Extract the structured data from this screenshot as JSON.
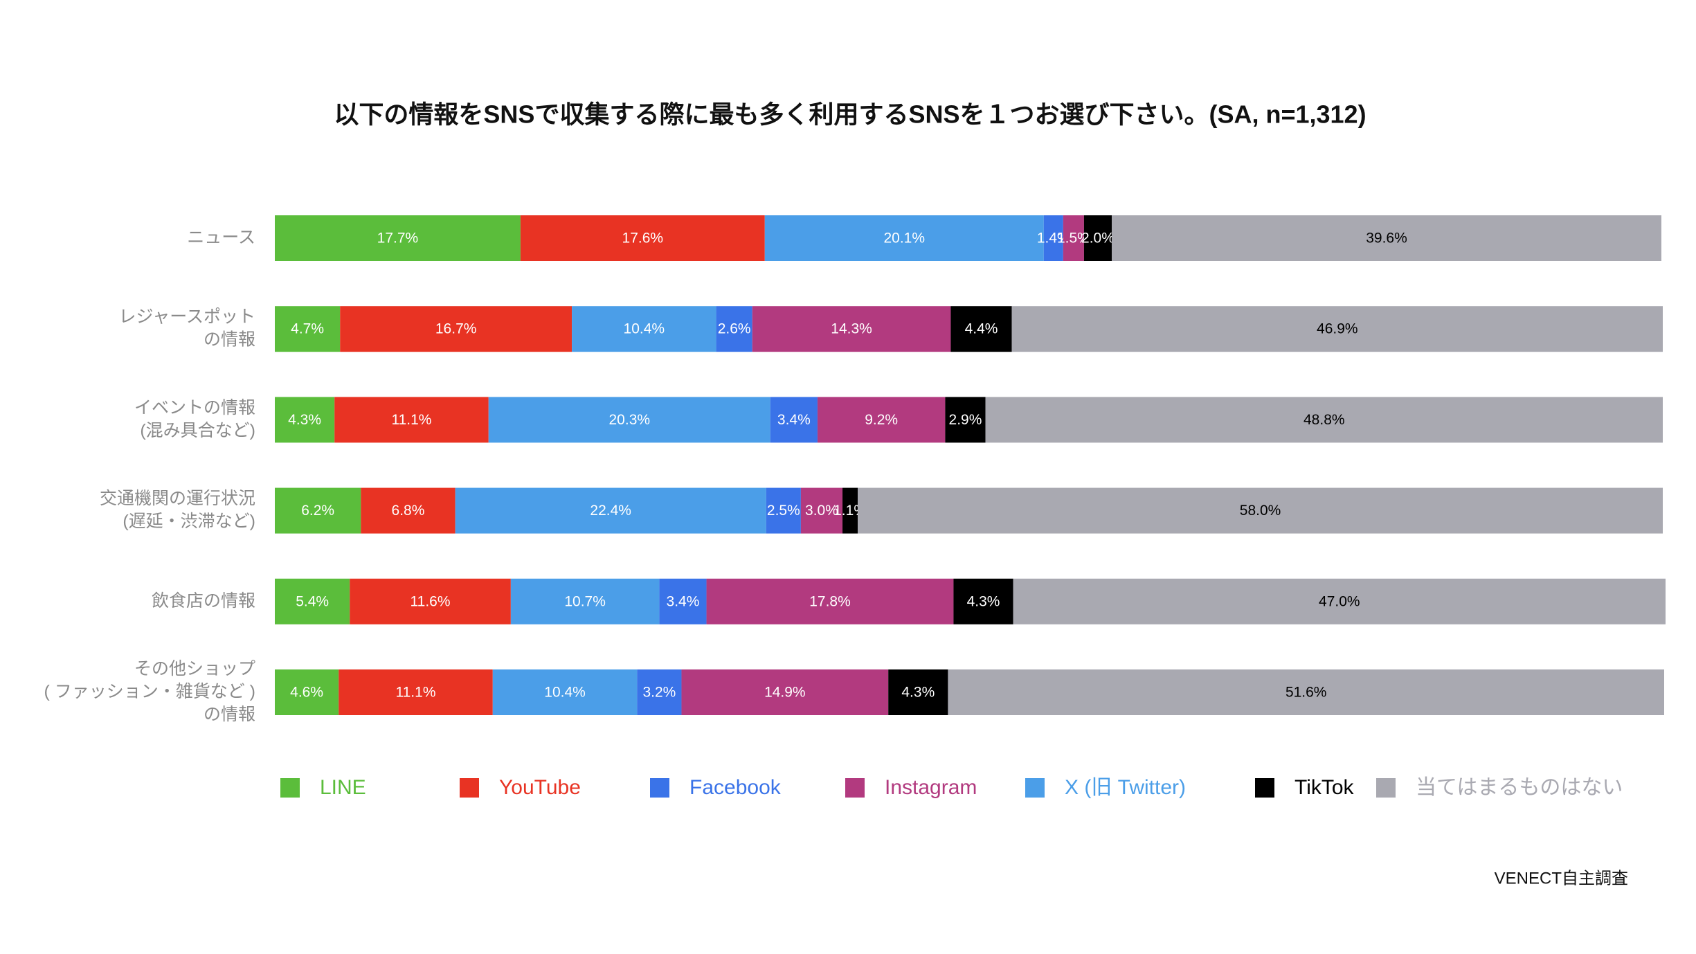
{
  "chart_data": {
    "type": "stacked-bar-horizontal",
    "title": "以下の情報をSNSで収集する際に最も多く利用するSNSを１つお選び下さい。(SA, n=1,312)",
    "categories": [
      "ニュース",
      "レジャースポット\nの情報",
      "イベントの情報\n(混み具合など)",
      "交通機関の運行状況\n(遅延・渋滞など)",
      "飲食店の情報",
      "その他ショップ\n( ファッション・雑貨など )\nの情報"
    ],
    "xlim": [
      0,
      100
    ],
    "series": [
      {
        "name": "LINE",
        "color": "#5bbd3b",
        "label_color": "#ffffff",
        "values": [
          17.7,
          4.7,
          4.3,
          6.2,
          5.4,
          4.6
        ],
        "value_labels": [
          "17.7%",
          "4.7%",
          "4.3%",
          "6.2%",
          "5.4%",
          "4.6%"
        ]
      },
      {
        "name": "YouTube",
        "color": "#e83323",
        "label_color": "#ffffff",
        "values": [
          17.6,
          16.7,
          11.1,
          6.8,
          11.6,
          11.1
        ],
        "value_labels": [
          "17.6%",
          "16.7%",
          "11.1%",
          "6.8%",
          "11.6%",
          "11.1%"
        ]
      },
      {
        "name": "Facebook",
        "color": "#3a73e8",
        "label_color": "#ffffff",
        "values": [
          1.4,
          2.6,
          3.4,
          2.5,
          3.4,
          3.2
        ],
        "value_labels": [
          "1.4%",
          "2.6%",
          "3.4%",
          "2.5%",
          "3.4%",
          "3.2%"
        ]
      },
      {
        "name": "Instagram",
        "color": "#b23a7f",
        "label_color": "#ffffff",
        "values": [
          1.5,
          14.3,
          9.2,
          3.0,
          17.8,
          14.9
        ],
        "value_labels": [
          "1.5%",
          "14.3%",
          "9.2%",
          "3.0%",
          "17.8%",
          "14.9%"
        ]
      },
      {
        "name": "X (旧 Twitter)",
        "color": "#4b9ee8",
        "label_color": "#ffffff",
        "values": [
          20.1,
          10.4,
          20.3,
          22.4,
          10.7,
          10.4
        ],
        "value_labels": [
          "20.1%",
          "10.4%",
          "20.3%",
          "22.4%",
          "10.7%",
          "10.4%"
        ]
      },
      {
        "name": "TikTok",
        "color": "#000000",
        "label_color": "#ffffff",
        "values": [
          2.0,
          4.4,
          2.9,
          1.1,
          4.3,
          4.3
        ],
        "value_labels": [
          "2.0%",
          "4.4%",
          "2.9%",
          "1.1%",
          "4.3%",
          "4.3%"
        ]
      },
      {
        "name": "当てはまるものはない",
        "color": "#a9a9b1",
        "label_color": "#000000",
        "values": [
          39.6,
          46.9,
          48.8,
          58.0,
          47.0,
          51.6
        ],
        "value_labels": [
          "39.6%",
          "46.9%",
          "48.8%",
          "58.0%",
          "47.0%",
          "51.6%"
        ]
      }
    ],
    "source": "VENECT自主調査"
  }
}
